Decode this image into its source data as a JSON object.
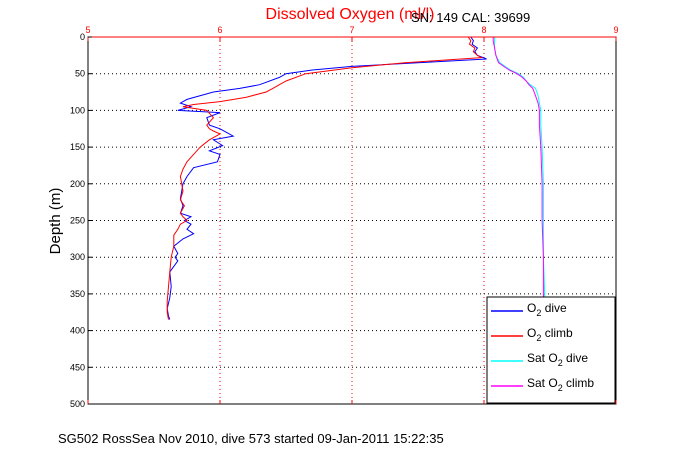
{
  "chart_data": {
    "type": "line",
    "title": "Dissolved Oxygen (ml/l)",
    "info": "SN: 149  CAL: 39699",
    "ylabel": "Depth (m)",
    "caption": "SG502 RossSea Nov 2010, dive 573 started 09-Jan-2011 15:22:35",
    "xlim": [
      5,
      9
    ],
    "ylim": [
      0,
      500
    ],
    "y_reversed": true,
    "x_axis_position": "top",
    "grid": true,
    "xticks": [
      "5",
      "6",
      "7",
      "8",
      "9"
    ],
    "yticks": [
      "0",
      "50",
      "100",
      "150",
      "200",
      "250",
      "300",
      "350",
      "400",
      "450",
      "500"
    ],
    "legend_position": "lower-right",
    "series": [
      {
        "name": "O2 dive",
        "legend": {
          "main": "O",
          "sub": "2",
          "rest": " dive"
        },
        "color": "#0000ff",
        "points": [
          [
            7.9,
            0
          ],
          [
            7.92,
            5
          ],
          [
            7.91,
            10
          ],
          [
            7.95,
            15
          ],
          [
            7.93,
            20
          ],
          [
            7.95,
            25
          ],
          [
            8.02,
            30
          ],
          [
            7.5,
            35
          ],
          [
            7.0,
            40
          ],
          [
            6.7,
            45
          ],
          [
            6.5,
            50
          ],
          [
            6.45,
            55
          ],
          [
            6.3,
            65
          ],
          [
            6.15,
            70
          ],
          [
            5.95,
            75
          ],
          [
            5.75,
            85
          ],
          [
            5.7,
            90
          ],
          [
            5.78,
            95
          ],
          [
            5.68,
            100
          ],
          [
            6.0,
            103
          ],
          [
            5.9,
            110
          ],
          [
            5.92,
            120
          ],
          [
            6.0,
            125
          ],
          [
            6.05,
            130
          ],
          [
            6.1,
            135
          ],
          [
            5.95,
            140
          ],
          [
            6.02,
            148
          ],
          [
            5.92,
            155
          ],
          [
            6.0,
            160
          ],
          [
            5.98,
            170
          ],
          [
            5.8,
            178
          ],
          [
            5.75,
            190
          ],
          [
            5.72,
            200
          ],
          [
            5.7,
            220
          ],
          [
            5.72,
            230
          ],
          [
            5.7,
            240
          ],
          [
            5.78,
            245
          ],
          [
            5.73,
            250
          ],
          [
            5.78,
            255
          ],
          [
            5.75,
            262
          ],
          [
            5.8,
            268
          ],
          [
            5.72,
            275
          ],
          [
            5.65,
            285
          ],
          [
            5.68,
            295
          ],
          [
            5.66,
            300
          ],
          [
            5.68,
            305
          ],
          [
            5.62,
            320
          ],
          [
            5.63,
            340
          ],
          [
            5.62,
            355
          ],
          [
            5.6,
            370
          ],
          [
            5.61,
            380
          ],
          [
            5.62,
            385
          ]
        ]
      },
      {
        "name": "O2 climb",
        "legend": {
          "main": "O",
          "sub": "2",
          "rest": " climb"
        },
        "color": "#ff0000",
        "points": [
          [
            7.88,
            0
          ],
          [
            7.9,
            5
          ],
          [
            7.89,
            10
          ],
          [
            7.93,
            15
          ],
          [
            7.92,
            20
          ],
          [
            7.95,
            25
          ],
          [
            7.98,
            28
          ],
          [
            7.4,
            35
          ],
          [
            7.0,
            42
          ],
          [
            6.65,
            50
          ],
          [
            6.5,
            60
          ],
          [
            6.4,
            70
          ],
          [
            6.35,
            75
          ],
          [
            6.2,
            82
          ],
          [
            6.0,
            88
          ],
          [
            5.8,
            92
          ],
          [
            5.72,
            95
          ],
          [
            5.9,
            100
          ],
          [
            5.95,
            110
          ],
          [
            5.9,
            120
          ],
          [
            5.92,
            125
          ],
          [
            5.95,
            128
          ],
          [
            6.0,
            132
          ],
          [
            5.92,
            140
          ],
          [
            5.85,
            150
          ],
          [
            5.8,
            160
          ],
          [
            5.75,
            170
          ],
          [
            5.72,
            180
          ],
          [
            5.7,
            190
          ],
          [
            5.71,
            200
          ],
          [
            5.72,
            210
          ],
          [
            5.7,
            222
          ],
          [
            5.73,
            230
          ],
          [
            5.7,
            240
          ],
          [
            5.72,
            245
          ],
          [
            5.75,
            250
          ],
          [
            5.7,
            255
          ],
          [
            5.68,
            262
          ],
          [
            5.65,
            270
          ],
          [
            5.65,
            285
          ],
          [
            5.63,
            300
          ],
          [
            5.62,
            320
          ],
          [
            5.61,
            340
          ],
          [
            5.6,
            360
          ],
          [
            5.6,
            375
          ],
          [
            5.61,
            385
          ]
        ]
      },
      {
        "name": "Sat O2 dive",
        "legend": {
          "main": "Sat O",
          "sub": "2",
          "rest": " dive"
        },
        "color": "#00ffff",
        "points": [
          [
            8.08,
            0
          ],
          [
            8.08,
            5
          ],
          [
            8.08,
            15
          ],
          [
            8.09,
            25
          ],
          [
            8.12,
            35
          ],
          [
            8.16,
            40
          ],
          [
            8.2,
            45
          ],
          [
            8.26,
            50
          ],
          [
            8.3,
            55
          ],
          [
            8.32,
            60
          ],
          [
            8.35,
            65
          ],
          [
            8.39,
            70
          ],
          [
            8.41,
            80
          ],
          [
            8.42,
            90
          ],
          [
            8.43,
            100
          ],
          [
            8.43,
            120
          ],
          [
            8.44,
            150
          ],
          [
            8.45,
            200
          ],
          [
            8.45,
            250
          ],
          [
            8.45,
            300
          ],
          [
            8.46,
            350
          ],
          [
            8.46,
            400
          ]
        ]
      },
      {
        "name": "Sat O2 climb",
        "legend": {
          "main": "Sat O",
          "sub": "2",
          "rest": " climb"
        },
        "color": "#ff00ff",
        "points": [
          [
            8.07,
            0
          ],
          [
            8.07,
            5
          ],
          [
            8.08,
            15
          ],
          [
            8.09,
            25
          ],
          [
            8.11,
            35
          ],
          [
            8.15,
            40
          ],
          [
            8.19,
            45
          ],
          [
            8.25,
            50
          ],
          [
            8.29,
            55
          ],
          [
            8.32,
            60
          ],
          [
            8.34,
            65
          ],
          [
            8.37,
            70
          ],
          [
            8.39,
            80
          ],
          [
            8.41,
            90
          ],
          [
            8.42,
            100
          ],
          [
            8.42,
            120
          ],
          [
            8.43,
            150
          ],
          [
            8.44,
            200
          ],
          [
            8.44,
            250
          ],
          [
            8.45,
            300
          ],
          [
            8.45,
            350
          ],
          [
            8.46,
            400
          ]
        ]
      }
    ]
  }
}
